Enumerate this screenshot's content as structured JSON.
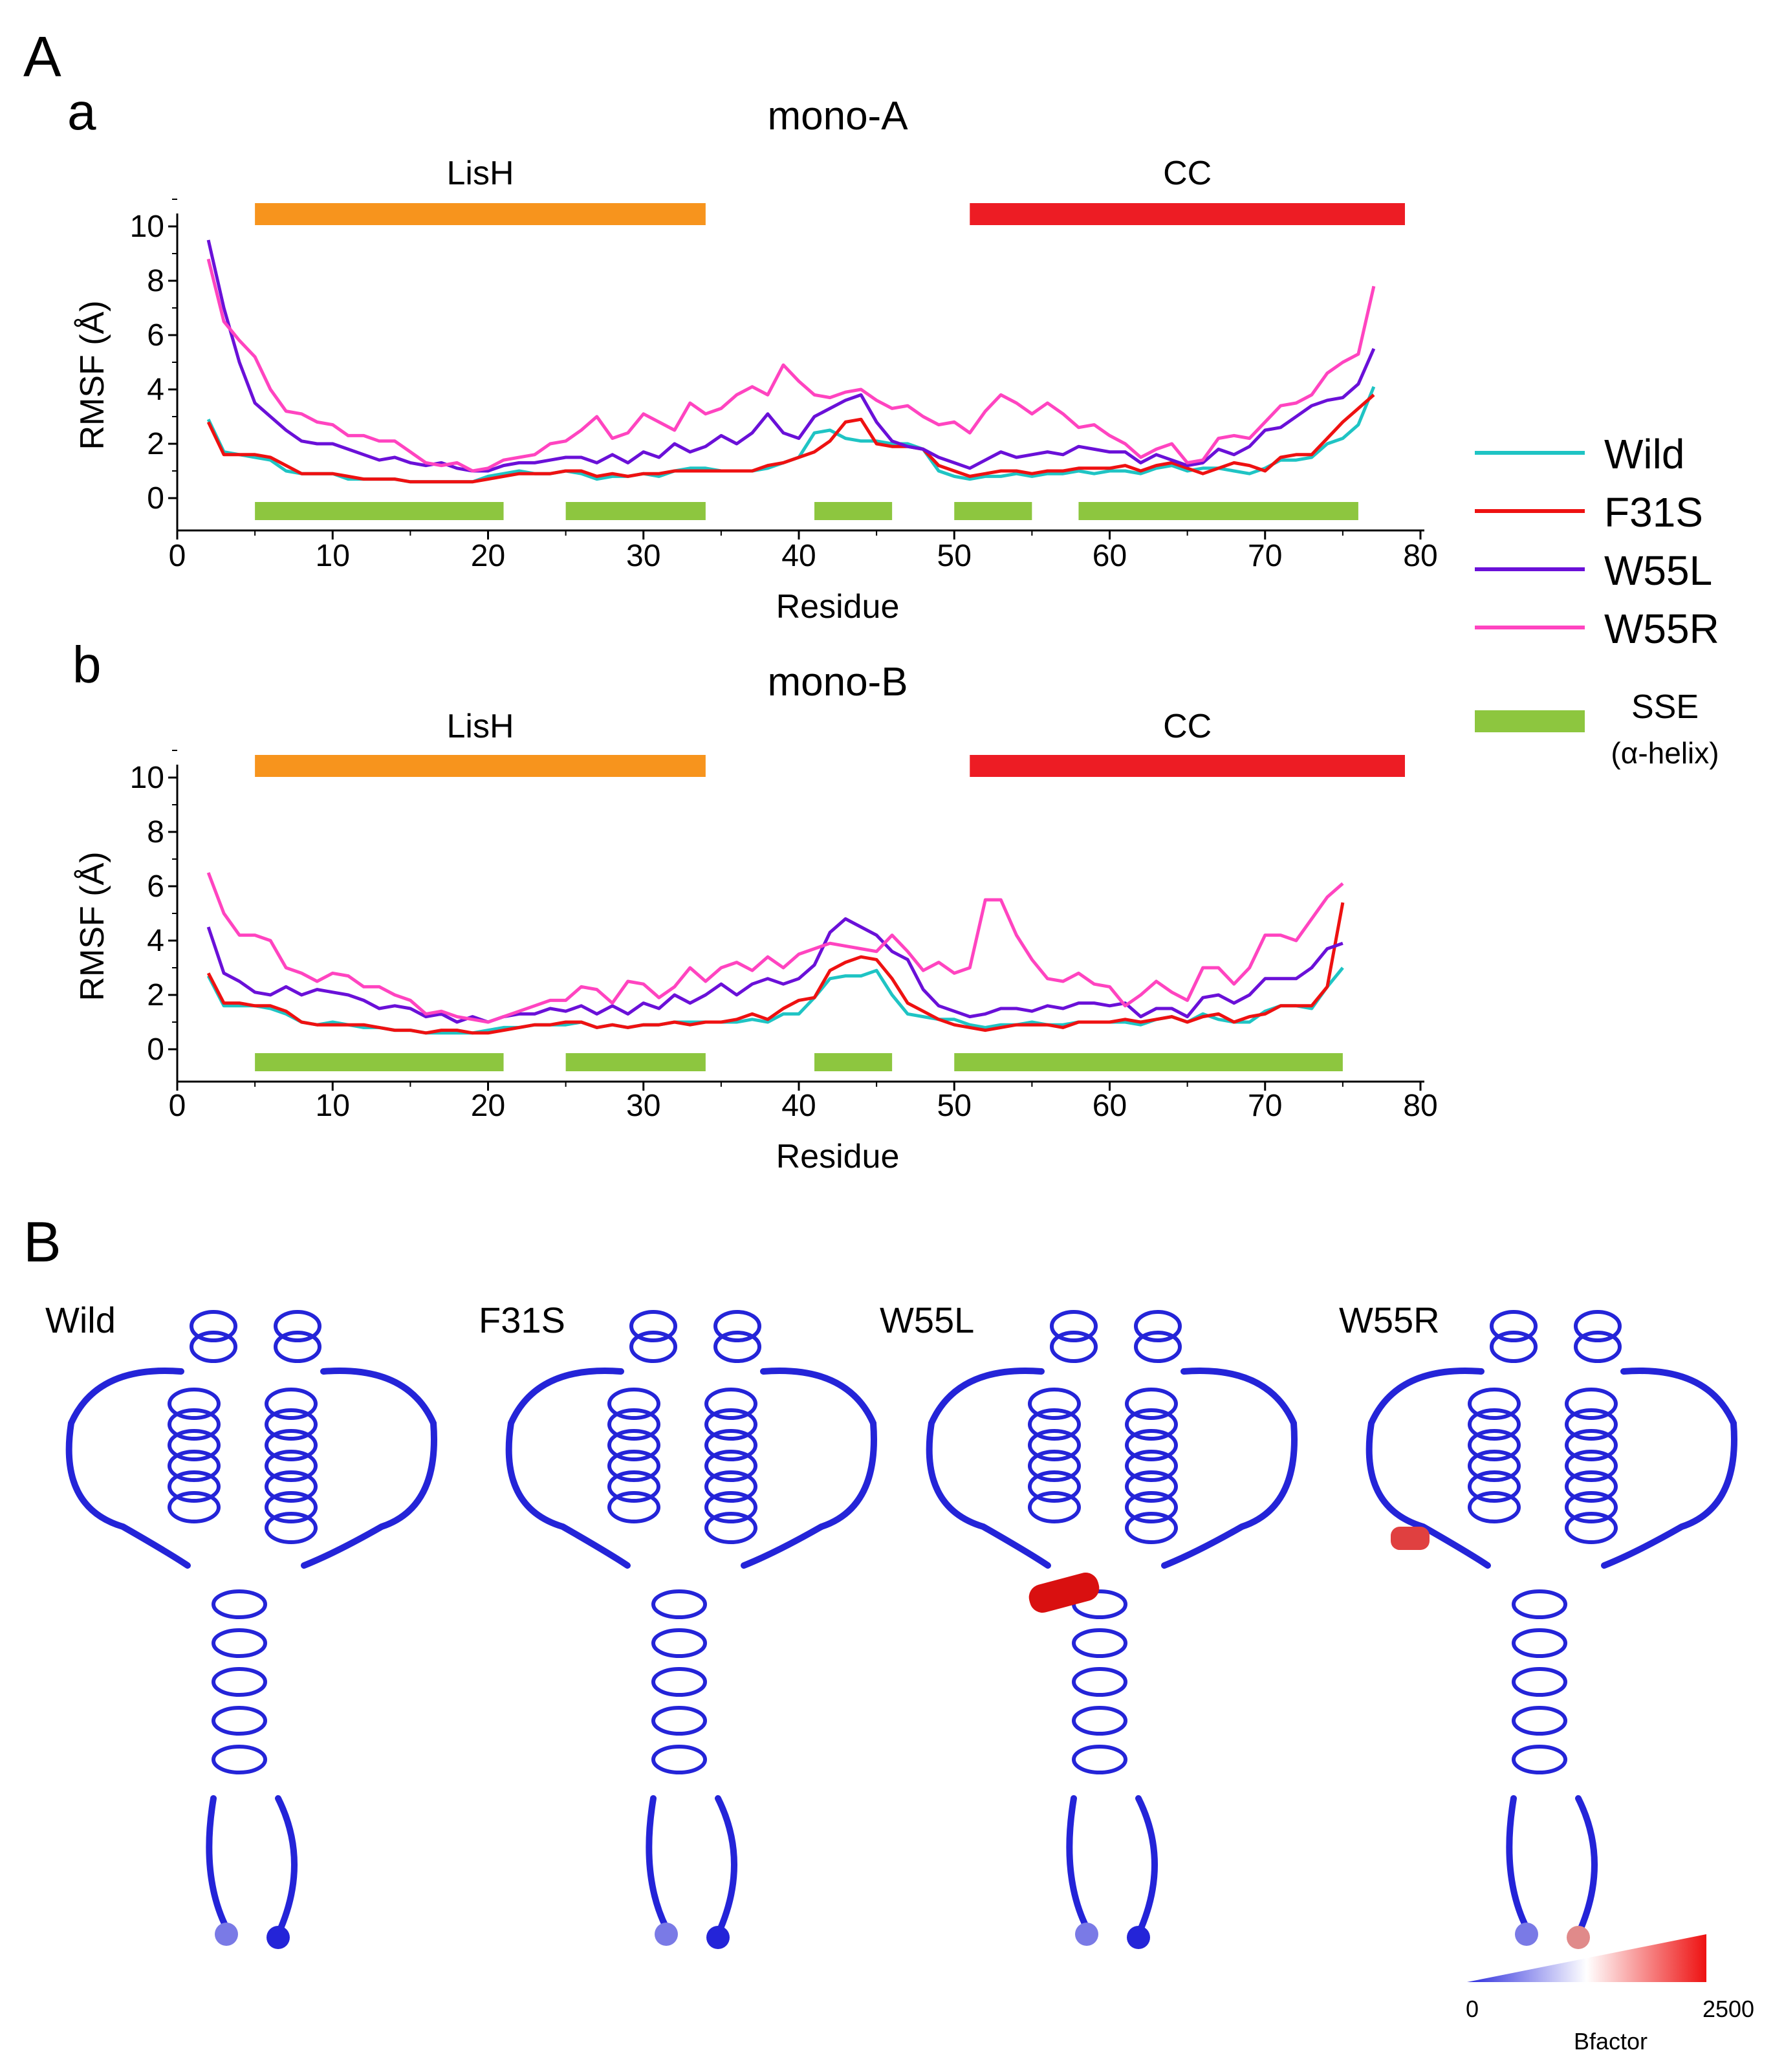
{
  "panel_labels": {
    "A": "A",
    "a": "a",
    "b": "b",
    "B": "B"
  },
  "legend": {
    "entries": [
      {
        "label": "Wild",
        "color": "#1fc4c4"
      },
      {
        "label": "F31S",
        "color": "#ee1111"
      },
      {
        "label": "W55L",
        "color": "#6a10d8"
      },
      {
        "label": "W55R",
        "color": "#ff44c0"
      }
    ],
    "sse_label": "SSE",
    "sse_sub": "(α-helix)",
    "sse_color": "#8dc63f"
  },
  "domain_colors": {
    "LisH": "#f7941d",
    "CC": "#ed1c24"
  },
  "chart_data": [
    {
      "type": "line",
      "title": "mono-A",
      "xlabel": "Residue",
      "ylabel": "RMSF (Å)",
      "xlim": [
        0,
        80
      ],
      "ylim": [
        0,
        11
      ],
      "xticks": [
        0,
        10,
        20,
        30,
        40,
        50,
        60,
        70,
        80
      ],
      "yticks": [
        0,
        2,
        4,
        6,
        8,
        10
      ],
      "domains": [
        {
          "label": "LisH",
          "start": 5,
          "end": 34
        },
        {
          "label": "CC",
          "start": 51,
          "end": 79
        }
      ],
      "sse": [
        [
          5,
          21
        ],
        [
          25,
          34
        ],
        [
          41,
          46
        ],
        [
          50,
          55
        ],
        [
          58,
          76
        ]
      ],
      "x": [
        2,
        3,
        4,
        5,
        6,
        7,
        8,
        9,
        10,
        11,
        12,
        13,
        14,
        15,
        16,
        17,
        18,
        19,
        20,
        21,
        22,
        23,
        24,
        25,
        26,
        27,
        28,
        29,
        30,
        31,
        32,
        33,
        34,
        35,
        36,
        37,
        38,
        39,
        40,
        41,
        42,
        43,
        44,
        45,
        46,
        47,
        48,
        49,
        50,
        51,
        52,
        53,
        54,
        55,
        56,
        57,
        58,
        59,
        60,
        61,
        62,
        63,
        64,
        65,
        66,
        67,
        68,
        69,
        70,
        71,
        72,
        73,
        74,
        75,
        76,
        77
      ],
      "series": [
        {
          "name": "Wild",
          "values": [
            2.9,
            1.7,
            1.6,
            1.5,
            1.4,
            1.0,
            0.9,
            0.9,
            0.9,
            0.7,
            0.7,
            0.7,
            0.7,
            0.6,
            0.6,
            0.6,
            0.6,
            0.6,
            0.8,
            0.9,
            1.0,
            0.9,
            0.9,
            1.0,
            0.9,
            0.7,
            0.8,
            0.8,
            0.9,
            0.8,
            1.0,
            1.1,
            1.1,
            1.0,
            1.0,
            1.0,
            1.1,
            1.3,
            1.5,
            2.4,
            2.5,
            2.2,
            2.1,
            2.1,
            2.0,
            2.0,
            1.8,
            1.0,
            0.8,
            0.7,
            0.8,
            0.8,
            0.9,
            0.8,
            0.9,
            0.9,
            1.0,
            0.9,
            1.0,
            1.0,
            0.9,
            1.1,
            1.2,
            1.0,
            1.1,
            1.1,
            1.0,
            0.9,
            1.1,
            1.4,
            1.4,
            1.5,
            2.0,
            2.2,
            2.7,
            4.1
          ]
        },
        {
          "name": "F31S",
          "values": [
            2.8,
            1.6,
            1.6,
            1.6,
            1.5,
            1.2,
            0.9,
            0.9,
            0.9,
            0.8,
            0.7,
            0.7,
            0.7,
            0.6,
            0.6,
            0.6,
            0.6,
            0.6,
            0.7,
            0.8,
            0.9,
            0.9,
            0.9,
            1.0,
            1.0,
            0.8,
            0.9,
            0.8,
            0.9,
            0.9,
            1.0,
            1.0,
            1.0,
            1.0,
            1.0,
            1.0,
            1.2,
            1.3,
            1.5,
            1.7,
            2.1,
            2.8,
            2.9,
            2.0,
            1.9,
            1.9,
            1.8,
            1.2,
            1.0,
            0.8,
            0.9,
            1.0,
            1.0,
            0.9,
            1.0,
            1.0,
            1.1,
            1.1,
            1.1,
            1.2,
            1.0,
            1.2,
            1.3,
            1.1,
            0.9,
            1.1,
            1.3,
            1.2,
            1.0,
            1.5,
            1.6,
            1.6,
            2.2,
            2.8,
            3.3,
            3.8
          ]
        },
        {
          "name": "W55L",
          "values": [
            9.5,
            7.0,
            5.0,
            3.5,
            3.0,
            2.5,
            2.1,
            2.0,
            2.0,
            1.8,
            1.6,
            1.4,
            1.5,
            1.3,
            1.2,
            1.3,
            1.1,
            1.0,
            1.0,
            1.2,
            1.3,
            1.3,
            1.4,
            1.5,
            1.5,
            1.3,
            1.6,
            1.3,
            1.7,
            1.5,
            2.0,
            1.7,
            1.9,
            2.3,
            2.0,
            2.4,
            3.1,
            2.4,
            2.2,
            3.0,
            3.3,
            3.6,
            3.8,
            2.8,
            2.1,
            1.9,
            1.8,
            1.5,
            1.3,
            1.1,
            1.4,
            1.7,
            1.5,
            1.6,
            1.7,
            1.6,
            1.9,
            1.8,
            1.7,
            1.7,
            1.3,
            1.6,
            1.4,
            1.2,
            1.3,
            1.8,
            1.6,
            1.9,
            2.5,
            2.6,
            3.0,
            3.4,
            3.6,
            3.7,
            4.2,
            5.5
          ]
        },
        {
          "name": "W55R",
          "values": [
            8.8,
            6.5,
            5.8,
            5.2,
            4.0,
            3.2,
            3.1,
            2.8,
            2.7,
            2.3,
            2.3,
            2.1,
            2.1,
            1.7,
            1.3,
            1.2,
            1.3,
            1.0,
            1.1,
            1.4,
            1.5,
            1.6,
            2.0,
            2.1,
            2.5,
            3.0,
            2.2,
            2.4,
            3.1,
            2.8,
            2.5,
            3.5,
            3.1,
            3.3,
            3.8,
            4.1,
            3.8,
            4.9,
            4.3,
            3.8,
            3.7,
            3.9,
            4.0,
            3.6,
            3.3,
            3.4,
            3.0,
            2.7,
            2.8,
            2.4,
            3.2,
            3.8,
            3.5,
            3.1,
            3.5,
            3.1,
            2.6,
            2.7,
            2.3,
            2.0,
            1.5,
            1.8,
            2.0,
            1.3,
            1.4,
            2.2,
            2.3,
            2.2,
            2.8,
            3.4,
            3.5,
            3.8,
            4.6,
            5.0,
            5.3,
            7.8
          ]
        }
      ]
    },
    {
      "type": "line",
      "title": "mono-B",
      "xlabel": "Residue",
      "ylabel": "RMSF (Å)",
      "xlim": [
        0,
        80
      ],
      "ylim": [
        0,
        11
      ],
      "xticks": [
        0,
        10,
        20,
        30,
        40,
        50,
        60,
        70,
        80
      ],
      "yticks": [
        0,
        2,
        4,
        6,
        8,
        10
      ],
      "domains": [
        {
          "label": "LisH",
          "start": 5,
          "end": 34
        },
        {
          "label": "CC",
          "start": 51,
          "end": 79
        }
      ],
      "sse": [
        [
          5,
          21
        ],
        [
          25,
          34
        ],
        [
          41,
          46
        ],
        [
          50,
          75
        ]
      ],
      "x": [
        2,
        3,
        4,
        5,
        6,
        7,
        8,
        9,
        10,
        11,
        12,
        13,
        14,
        15,
        16,
        17,
        18,
        19,
        20,
        21,
        22,
        23,
        24,
        25,
        26,
        27,
        28,
        29,
        30,
        31,
        32,
        33,
        34,
        35,
        36,
        37,
        38,
        39,
        40,
        41,
        42,
        43,
        44,
        45,
        46,
        47,
        48,
        49,
        50,
        51,
        52,
        53,
        54,
        55,
        56,
        57,
        58,
        59,
        60,
        61,
        62,
        63,
        64,
        65,
        66,
        67,
        68,
        69,
        70,
        71,
        72,
        73,
        74,
        75
      ],
      "series": [
        {
          "name": "Wild",
          "values": [
            2.7,
            1.6,
            1.6,
            1.6,
            1.5,
            1.3,
            1.0,
            0.9,
            1.0,
            0.9,
            0.8,
            0.8,
            0.7,
            0.7,
            0.6,
            0.6,
            0.6,
            0.6,
            0.7,
            0.8,
            0.8,
            0.9,
            0.9,
            0.9,
            1.0,
            0.8,
            0.9,
            0.8,
            0.9,
            0.9,
            1.0,
            1.0,
            1.0,
            1.0,
            1.0,
            1.1,
            1.0,
            1.3,
            1.3,
            1.9,
            2.6,
            2.7,
            2.7,
            2.9,
            2.0,
            1.3,
            1.2,
            1.1,
            1.1,
            0.9,
            0.8,
            0.9,
            0.9,
            1.0,
            0.9,
            0.9,
            1.0,
            1.0,
            1.0,
            1.0,
            0.9,
            1.1,
            1.2,
            1.0,
            1.3,
            1.1,
            1.0,
            1.0,
            1.4,
            1.6,
            1.6,
            1.5,
            2.3,
            3.0
          ]
        },
        {
          "name": "F31S",
          "values": [
            2.8,
            1.7,
            1.7,
            1.6,
            1.6,
            1.4,
            1.0,
            0.9,
            0.9,
            0.9,
            0.9,
            0.8,
            0.7,
            0.7,
            0.6,
            0.7,
            0.7,
            0.6,
            0.6,
            0.7,
            0.8,
            0.9,
            0.9,
            1.0,
            1.0,
            0.8,
            0.9,
            0.8,
            0.9,
            0.9,
            1.0,
            0.9,
            1.0,
            1.0,
            1.1,
            1.3,
            1.1,
            1.5,
            1.8,
            1.9,
            2.9,
            3.2,
            3.4,
            3.3,
            2.6,
            1.7,
            1.4,
            1.1,
            0.9,
            0.8,
            0.7,
            0.8,
            0.9,
            0.9,
            0.9,
            0.8,
            1.0,
            1.0,
            1.0,
            1.1,
            1.0,
            1.1,
            1.2,
            1.0,
            1.2,
            1.3,
            1.0,
            1.2,
            1.3,
            1.6,
            1.6,
            1.6,
            2.3,
            5.4
          ]
        },
        {
          "name": "W55L",
          "values": [
            4.5,
            2.8,
            2.5,
            2.1,
            2.0,
            2.3,
            2.0,
            2.2,
            2.1,
            2.0,
            1.8,
            1.5,
            1.6,
            1.5,
            1.2,
            1.3,
            1.0,
            1.2,
            1.0,
            1.2,
            1.3,
            1.3,
            1.5,
            1.4,
            1.6,
            1.3,
            1.6,
            1.3,
            1.7,
            1.5,
            2.0,
            1.7,
            2.0,
            2.4,
            2.0,
            2.4,
            2.6,
            2.4,
            2.6,
            3.1,
            4.3,
            4.8,
            4.5,
            4.2,
            3.6,
            3.3,
            2.2,
            1.6,
            1.4,
            1.2,
            1.3,
            1.5,
            1.5,
            1.4,
            1.6,
            1.5,
            1.7,
            1.7,
            1.6,
            1.7,
            1.2,
            1.5,
            1.5,
            1.2,
            1.9,
            2.0,
            1.7,
            2.0,
            2.6,
            2.6,
            2.6,
            3.0,
            3.7,
            3.9
          ]
        },
        {
          "name": "W55R",
          "values": [
            6.5,
            5.0,
            4.2,
            4.2,
            4.0,
            3.0,
            2.8,
            2.5,
            2.8,
            2.7,
            2.3,
            2.3,
            2.0,
            1.8,
            1.3,
            1.4,
            1.2,
            1.1,
            1.0,
            1.2,
            1.4,
            1.6,
            1.8,
            1.8,
            2.3,
            2.2,
            1.7,
            2.5,
            2.4,
            1.9,
            2.3,
            3.0,
            2.5,
            3.0,
            3.2,
            2.9,
            3.4,
            3.0,
            3.5,
            3.7,
            3.9,
            3.8,
            3.7,
            3.6,
            4.2,
            3.6,
            2.9,
            3.2,
            2.8,
            3.0,
            5.5,
            5.5,
            4.2,
            3.3,
            2.6,
            2.5,
            2.8,
            2.4,
            2.3,
            1.6,
            2.0,
            2.5,
            2.1,
            1.8,
            3.0,
            3.0,
            2.4,
            3.0,
            4.2,
            4.2,
            4.0,
            4.8,
            5.6,
            6.1
          ]
        }
      ]
    }
  ],
  "structures": {
    "items": [
      {
        "label": "Wild",
        "thick": [
          0.0,
          0.0,
          0.0,
          0.0,
          0.0,
          0.0
        ]
      },
      {
        "label": "F31S",
        "thick": [
          0.0,
          0.0,
          0.0,
          0.0,
          0.0,
          0.0
        ]
      },
      {
        "label": "W55L",
        "thick": [
          0.0,
          0.0,
          0.0,
          0.0,
          0.0,
          0.0
        ]
      },
      {
        "label": "W55R",
        "thick": [
          0.0,
          0.0,
          0.0,
          0.0,
          0.0,
          0.0
        ]
      }
    ],
    "colorbar": {
      "min": "0",
      "max": "2500",
      "label": "Bfactor"
    }
  }
}
